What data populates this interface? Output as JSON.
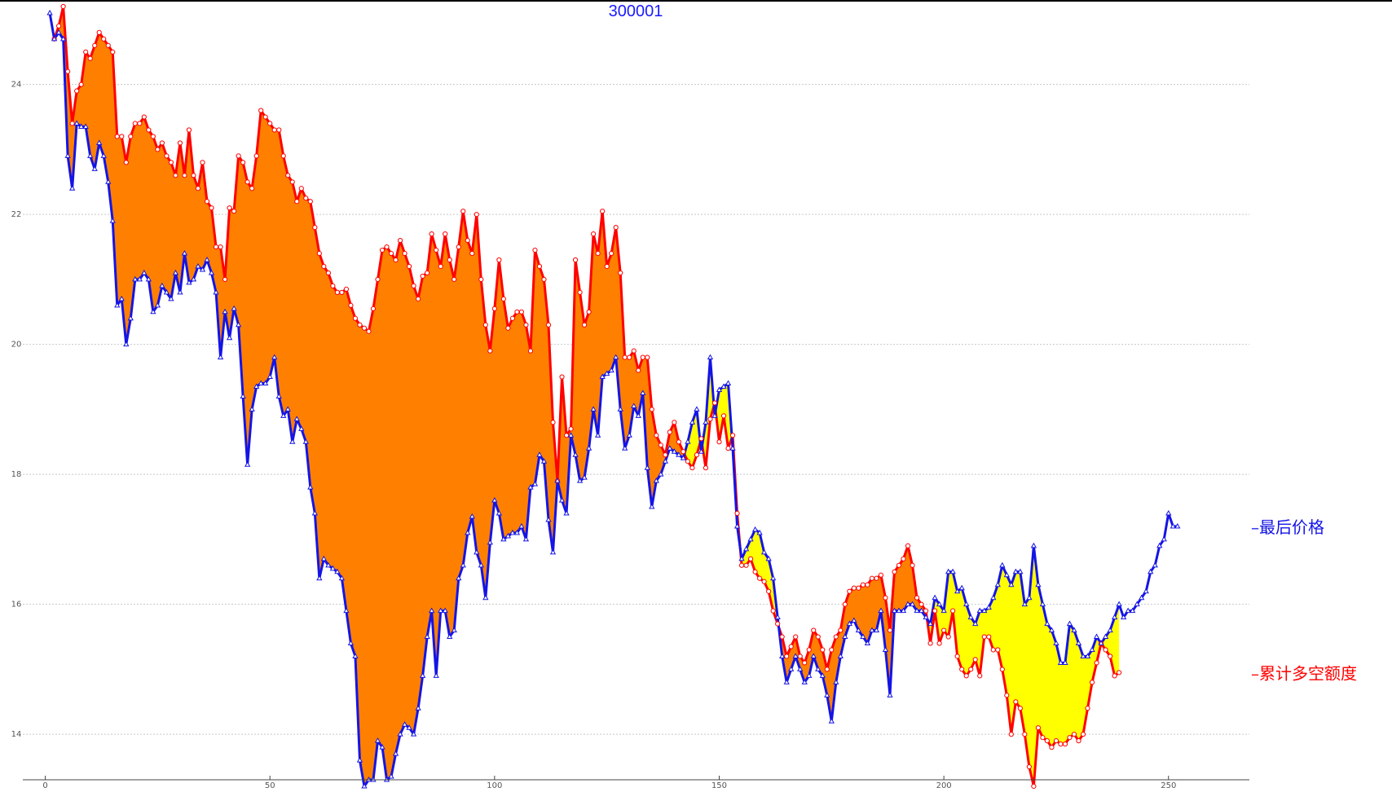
{
  "chart_data": {
    "type": "line",
    "title": "300001",
    "xlabel": "",
    "ylabel": "",
    "xlim": [
      -5,
      268
    ],
    "ylim": [
      13.3,
      25.3
    ],
    "x_ticks": [
      0,
      50,
      100,
      150,
      200,
      250
    ],
    "y_ticks": [
      14,
      16,
      18,
      20,
      22,
      24
    ],
    "grid": "horizontal dotted",
    "fill_above_color": "#ff8000",
    "fill_below_color": "#ffff00",
    "top_border_color": "#000000",
    "series": [
      {
        "name": "最后价格",
        "color": "#1414e6",
        "marker": "triangle",
        "x_start": 1,
        "values": [
          25.1,
          24.7,
          24.8,
          24.7,
          22.9,
          22.4,
          23.4,
          23.35,
          23.35,
          22.9,
          22.7,
          23.1,
          22.9,
          22.5,
          21.9,
          20.6,
          20.7,
          20.0,
          20.4,
          21.0,
          21.0,
          21.1,
          21.0,
          20.5,
          20.6,
          20.9,
          20.8,
          20.7,
          21.1,
          20.8,
          21.4,
          20.95,
          21.0,
          21.2,
          21.15,
          21.3,
          21.1,
          20.8,
          19.8,
          20.5,
          20.1,
          20.55,
          20.3,
          19.2,
          18.15,
          19.0,
          19.35,
          19.4,
          19.4,
          19.5,
          19.8,
          19.2,
          18.9,
          19.0,
          18.5,
          18.85,
          18.7,
          18.5,
          17.8,
          17.4,
          16.4,
          16.7,
          16.6,
          16.55,
          16.5,
          16.4,
          15.9,
          15.4,
          15.2,
          13.6,
          13.2,
          13.3,
          13.3,
          13.9,
          13.8,
          13.3,
          13.35,
          13.7,
          14.0,
          14.15,
          14.1,
          14.0,
          14.4,
          14.9,
          15.5,
          15.9,
          14.9,
          15.9,
          15.9,
          15.5,
          15.6,
          16.4,
          16.6,
          17.1,
          17.35,
          16.8,
          16.6,
          16.1,
          16.95,
          17.6,
          17.4,
          17.0,
          17.05,
          17.1,
          17.1,
          17.2,
          17.0,
          17.8,
          17.85,
          18.3,
          18.2,
          17.3,
          16.8,
          17.9,
          17.6,
          17.4,
          18.6,
          18.3,
          17.9,
          17.95,
          18.4,
          19.0,
          18.6,
          19.5,
          19.55,
          19.6,
          19.8,
          19.0,
          18.4,
          18.6,
          19.05,
          18.9,
          19.25,
          18.1,
          17.5,
          17.9,
          18.0,
          18.2,
          18.4,
          18.35,
          18.3,
          18.25,
          18.5,
          18.8,
          19.0,
          18.35,
          18.8,
          19.8,
          18.9,
          19.3,
          19.35,
          19.4,
          18.4,
          17.2,
          16.7,
          16.85,
          17.0,
          17.15,
          17.1,
          16.8,
          16.7,
          16.4,
          15.8,
          15.2,
          14.8,
          15.0,
          15.2,
          15.0,
          14.8,
          14.9,
          15.2,
          15.0,
          14.9,
          14.6,
          14.2,
          14.8,
          15.2,
          15.5,
          15.7,
          15.75,
          15.6,
          15.5,
          15.4,
          15.6,
          15.6,
          15.9,
          15.3,
          14.6,
          15.9,
          15.9,
          15.9,
          16.0,
          16.0,
          15.9,
          15.9,
          15.8,
          15.7,
          16.1,
          16.0,
          15.9,
          16.5,
          16.5,
          16.2,
          16.25,
          16.0,
          15.8,
          15.7,
          15.9,
          15.9,
          15.95,
          16.1,
          16.3,
          16.6,
          16.45,
          16.3,
          16.5,
          16.5,
          16.0,
          16.1,
          16.9,
          16.3,
          16.0,
          15.7,
          15.6,
          15.4,
          15.1,
          15.1,
          15.7,
          15.6,
          15.4,
          15.2,
          15.2,
          15.3,
          15.5,
          15.4,
          15.5,
          15.6,
          15.8,
          16.0,
          15.8,
          15.9,
          15.9,
          16.0,
          16.1,
          16.2,
          16.5,
          16.6,
          16.9,
          17.0,
          17.4,
          17.2,
          17.2
        ]
      },
      {
        "name": "累计多空额度",
        "color": "#ff0000",
        "marker": "circle",
        "x_start": 2,
        "values": [
          24.7,
          24.9,
          25.2,
          24.2,
          23.4,
          23.9,
          24.0,
          24.5,
          24.4,
          24.6,
          24.8,
          24.7,
          24.6,
          24.5,
          23.2,
          23.2,
          22.8,
          23.2,
          23.4,
          23.4,
          23.5,
          23.3,
          23.2,
          23.0,
          23.1,
          22.9,
          22.8,
          22.6,
          23.1,
          22.6,
          23.3,
          22.6,
          22.4,
          22.8,
          22.2,
          22.1,
          21.5,
          21.5,
          21.0,
          22.1,
          22.05,
          22.9,
          22.8,
          22.5,
          22.4,
          22.9,
          23.6,
          23.5,
          23.4,
          23.3,
          23.3,
          22.9,
          22.6,
          22.5,
          22.2,
          22.4,
          22.25,
          22.2,
          21.8,
          21.4,
          21.2,
          21.1,
          20.9,
          20.8,
          20.8,
          20.85,
          20.6,
          20.4,
          20.3,
          20.25,
          20.2,
          20.55,
          21.0,
          21.45,
          21.5,
          21.4,
          21.3,
          21.6,
          21.4,
          21.2,
          20.9,
          20.7,
          21.05,
          21.1,
          21.7,
          21.45,
          21.2,
          21.7,
          21.3,
          21.0,
          21.5,
          22.05,
          21.6,
          21.4,
          22.0,
          21.0,
          20.3,
          19.9,
          20.55,
          21.3,
          20.7,
          20.25,
          20.4,
          20.5,
          20.5,
          20.3,
          19.9,
          21.45,
          21.2,
          21.0,
          20.3,
          18.8,
          17.9,
          19.5,
          18.6,
          18.7,
          21.3,
          20.8,
          20.3,
          20.5,
          21.7,
          21.4,
          22.05,
          21.2,
          21.4,
          21.8,
          21.1,
          19.8,
          19.8,
          19.9,
          19.6,
          19.8,
          19.8,
          19.0,
          18.6,
          18.45,
          18.3,
          18.65,
          18.8,
          18.5,
          18.35,
          18.2,
          18.1,
          18.3,
          18.55,
          18.1,
          18.85,
          19.1,
          18.5,
          18.9,
          18.4,
          18.6,
          17.4,
          16.6,
          16.6,
          16.7,
          16.5,
          16.4,
          16.35,
          16.2,
          15.9,
          15.7,
          15.5,
          15.2,
          15.35,
          15.5,
          15.2,
          15.1,
          15.3,
          15.6,
          15.5,
          15.3,
          15.0,
          15.3,
          15.5,
          15.6,
          16.0,
          16.2,
          16.25,
          16.25,
          16.3,
          16.3,
          16.4,
          16.4,
          16.45,
          16.1,
          15.6,
          16.5,
          16.6,
          16.7,
          16.9,
          16.6,
          16.1,
          16.0,
          15.9,
          15.4,
          15.9,
          15.4,
          15.6,
          15.5,
          15.9,
          15.2,
          15.0,
          14.9,
          15.0,
          15.15,
          14.9,
          15.5,
          15.5,
          15.3,
          15.3,
          15.0,
          14.6,
          14.0,
          14.5,
          14.4,
          14.0,
          13.5,
          13.2,
          14.1,
          13.95,
          13.9,
          13.8,
          13.9,
          13.85,
          13.85,
          13.95,
          14.0,
          13.9,
          14.0,
          14.4,
          14.8,
          15.1,
          15.4,
          15.3,
          15.2,
          14.9,
          14.95
        ]
      }
    ],
    "legend": [
      {
        "label": "最后价格",
        "color": "#1414e6"
      },
      {
        "label": "累计多空额度",
        "color": "#ff0000"
      }
    ],
    "legend_placement": "right, beside line ends"
  }
}
